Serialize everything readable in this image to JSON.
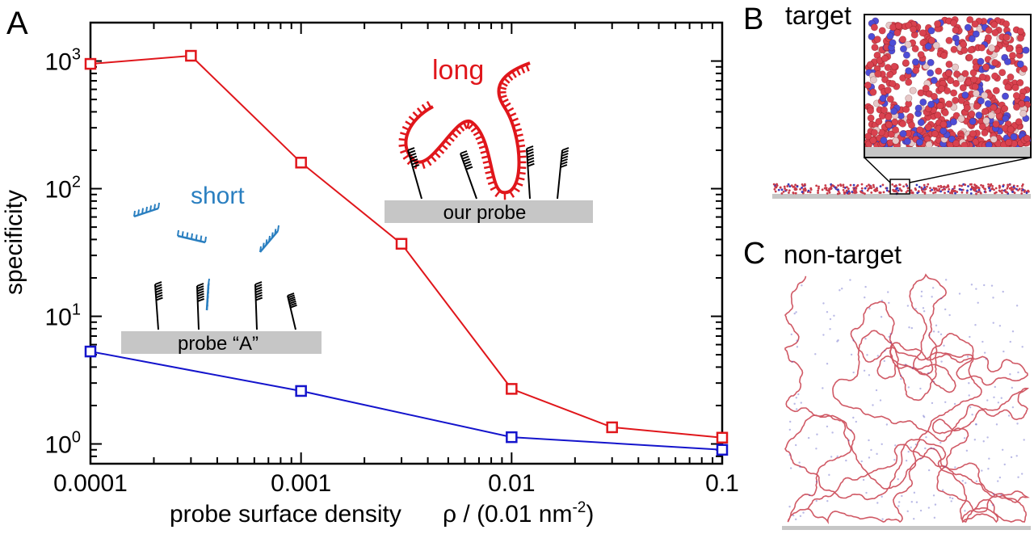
{
  "panels": {
    "a": "A",
    "b": "B",
    "c": "C",
    "b_title": "target",
    "c_title": "non-target"
  },
  "colors": {
    "long": "#e0161b",
    "short_series": "#1414cc",
    "short_label": "#2a7fc0",
    "probe_bar": "#c6c6c6",
    "molecule": "#c83c4a",
    "molecule_alt": "#3a3ab8"
  },
  "chart_data": {
    "type": "line",
    "xscale": "log",
    "yscale": "log",
    "xlim": [
      0.0001,
      0.1
    ],
    "ylim": [
      0.7,
      2000
    ],
    "xticks": [
      "0.0001",
      "0.001",
      "0.01",
      "0.1"
    ],
    "yticks": [
      {
        "base": "10",
        "exp": "0"
      },
      {
        "base": "10",
        "exp": "1"
      },
      {
        "base": "10",
        "exp": "2"
      },
      {
        "base": "10",
        "exp": "3"
      }
    ],
    "xlabel": {
      "text": "probe surface density",
      "symbol": "ρ / (0.01 nm",
      "exp": "-2",
      "close": ")"
    },
    "ylabel": "specificity",
    "grid": false,
    "series": [
      {
        "key": "long",
        "x": [
          0.0001,
          0.0003,
          0.001,
          0.003,
          0.01,
          0.03,
          0.1
        ],
        "y": [
          950,
          1100,
          160,
          37,
          2.7,
          1.35,
          1.12
        ]
      },
      {
        "key": "short",
        "x": [
          0.0001,
          0.001,
          0.01,
          0.1
        ],
        "y": [
          5.3,
          2.6,
          1.13,
          0.9
        ]
      }
    ],
    "annotations": {
      "long": "long",
      "short": "short",
      "our_probe": "our probe",
      "probe_a": "probe “A”"
    }
  }
}
